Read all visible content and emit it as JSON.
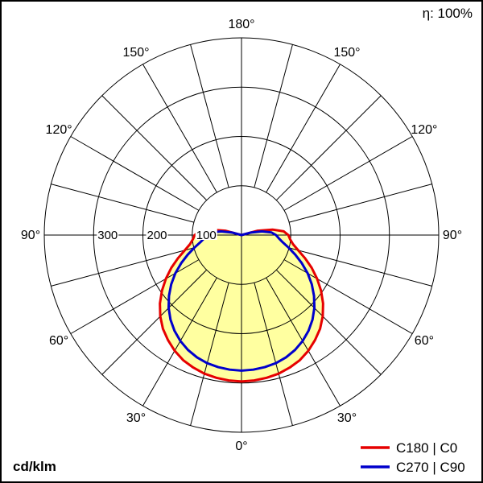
{
  "header": {
    "efficiency": "η: 100%"
  },
  "footer": {
    "unit": "cd/klm"
  },
  "legend": [
    {
      "label": "C180 | C0",
      "color": "#e60000"
    },
    {
      "label": "C270 | C90",
      "color": "#0000cc"
    }
  ],
  "chart_data": {
    "type": "polar_line",
    "description": "Luminous intensity distribution curve (polar LDC), gamma angle measured from nadir (0° at bottom), symmetric half-planes",
    "unit": "cd/klm",
    "angle_ticks_deg": [
      0,
      30,
      60,
      90,
      120,
      150,
      180
    ],
    "angle_tick_suffix": "°",
    "angle_grid_step_deg": 15,
    "radial_ticks": [
      100,
      200,
      300
    ],
    "radial_max": 400,
    "gamma_deg": [
      0,
      5,
      10,
      15,
      20,
      25,
      30,
      35,
      40,
      45,
      50,
      55,
      60,
      65,
      70,
      75,
      80,
      85,
      90,
      95,
      100,
      105,
      110
    ],
    "series": [
      {
        "name": "C180 | C0",
        "color": "#e60000",
        "fill": "#ffffa0",
        "values": [
          297,
          296,
          294,
          291,
          286,
          280,
          271,
          260,
          248,
          233,
          216,
          197,
          177,
          157,
          137,
          119,
          106,
          99,
          95,
          86,
          64,
          34,
          0
        ]
      },
      {
        "name": "C270 | C90",
        "color": "#0000cc",
        "fill": null,
        "values": [
          275,
          274,
          272,
          269,
          264,
          257,
          248,
          237,
          224,
          209,
          192,
          174,
          155,
          135,
          116,
          99,
          85,
          76,
          70,
          61,
          42,
          20,
          0
        ]
      }
    ]
  }
}
